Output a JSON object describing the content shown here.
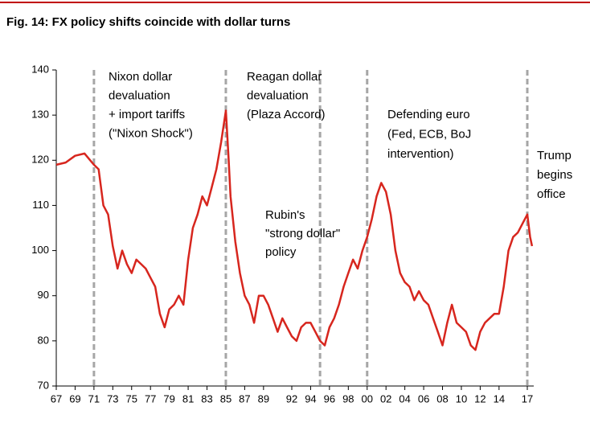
{
  "chart_data": {
    "type": "line",
    "title": "Fig. 14: FX policy shifts coincide with dollar turns",
    "ylim": [
      70,
      140
    ],
    "yticks": [
      70,
      80,
      90,
      100,
      110,
      120,
      130,
      140
    ],
    "xlim": [
      1967,
      2018
    ],
    "xticks": [
      {
        "value": 1967,
        "label": "67"
      },
      {
        "value": 1969,
        "label": "69"
      },
      {
        "value": 1971,
        "label": "71"
      },
      {
        "value": 1973,
        "label": "73"
      },
      {
        "value": 1975,
        "label": "75"
      },
      {
        "value": 1977,
        "label": "77"
      },
      {
        "value": 1979,
        "label": "79"
      },
      {
        "value": 1981,
        "label": "81"
      },
      {
        "value": 1983,
        "label": "83"
      },
      {
        "value": 1985,
        "label": "85"
      },
      {
        "value": 1987,
        "label": "87"
      },
      {
        "value": 1989,
        "label": "89"
      },
      {
        "value": 1992,
        "label": "92"
      },
      {
        "value": 1994,
        "label": "94"
      },
      {
        "value": 1996,
        "label": "96"
      },
      {
        "value": 1998,
        "label": "98"
      },
      {
        "value": 2000,
        "label": "00"
      },
      {
        "value": 2002,
        "label": "02"
      },
      {
        "value": 2004,
        "label": "04"
      },
      {
        "value": 2006,
        "label": "06"
      },
      {
        "value": 2008,
        "label": "08"
      },
      {
        "value": 2010,
        "label": "10"
      },
      {
        "value": 2012,
        "label": "12"
      },
      {
        "value": 2014,
        "label": "14"
      },
      {
        "value": 2017,
        "label": "17"
      }
    ],
    "x": [
      1967,
      1968,
      1969,
      1970,
      1971,
      1971.5,
      1972,
      1972.5,
      1973,
      1973.5,
      1974,
      1974.5,
      1975,
      1975.5,
      1976,
      1976.5,
      1977,
      1977.5,
      1978,
      1978.5,
      1979,
      1979.5,
      1980,
      1980.5,
      1981,
      1981.5,
      1982,
      1982.5,
      1983,
      1983.5,
      1984,
      1984.5,
      1985,
      1985.3,
      1985.5,
      1986,
      1986.5,
      1987,
      1987.5,
      1988,
      1988.5,
      1989,
      1989.5,
      1990,
      1990.5,
      1991,
      1991.5,
      1992,
      1992.5,
      1993,
      1993.5,
      1994,
      1994.5,
      1995,
      1995.5,
      1996,
      1996.5,
      1997,
      1997.5,
      1998,
      1998.5,
      1999,
      1999.5,
      2000,
      2000.5,
      2001,
      2001.5,
      2002,
      2002.5,
      2003,
      2003.5,
      2004,
      2004.5,
      2005,
      2005.5,
      2006,
      2006.5,
      2007,
      2007.5,
      2008,
      2008.5,
      2009,
      2009.5,
      2010,
      2010.5,
      2011,
      2011.5,
      2012,
      2012.5,
      2013,
      2013.5,
      2014,
      2014.5,
      2015,
      2015.5,
      2016,
      2016.5,
      2017,
      2017.3,
      2017.5
    ],
    "series": [
      {
        "color": "#d7261e",
        "values": [
          119,
          119.5,
          121,
          121.5,
          119,
          118,
          110,
          108,
          101,
          96,
          100,
          97,
          95,
          98,
          97,
          96,
          94,
          92,
          86,
          83,
          87,
          88,
          90,
          88,
          98,
          105,
          108,
          112,
          110,
          114,
          118,
          124,
          131,
          120,
          112,
          102,
          95,
          90,
          88,
          84,
          90,
          90,
          88,
          85,
          82,
          85,
          83,
          81,
          80,
          83,
          84,
          84,
          82,
          80,
          79,
          83,
          85,
          88,
          92,
          95,
          98,
          96,
          100,
          103,
          107,
          112,
          115,
          113,
          108,
          100,
          95,
          93,
          92,
          89,
          91,
          89,
          88,
          85,
          82,
          79,
          84,
          88,
          84,
          83,
          82,
          79,
          78,
          82,
          84,
          85,
          86,
          86,
          92,
          100,
          103,
          104,
          106,
          108,
          103,
          101
        ]
      }
    ],
    "events": [
      {
        "x": 1971,
        "label": [
          "Nixon dollar",
          "devaluation",
          "+ import tariffs",
          "(\"Nixon Shock\")"
        ]
      },
      {
        "x": 1985,
        "label": [
          "Reagan dollar",
          "devaluation",
          "(Plaza Accord)"
        ]
      },
      {
        "x": 1995,
        "label": [
          "Rubin's",
          "\"strong dollar\"",
          "policy"
        ]
      },
      {
        "x": 2000,
        "label": [
          "Defending euro",
          "(Fed, ECB, BoJ",
          "intervention)"
        ]
      },
      {
        "x": 2017,
        "label": [
          "Trump",
          "begins",
          "office"
        ]
      }
    ]
  }
}
